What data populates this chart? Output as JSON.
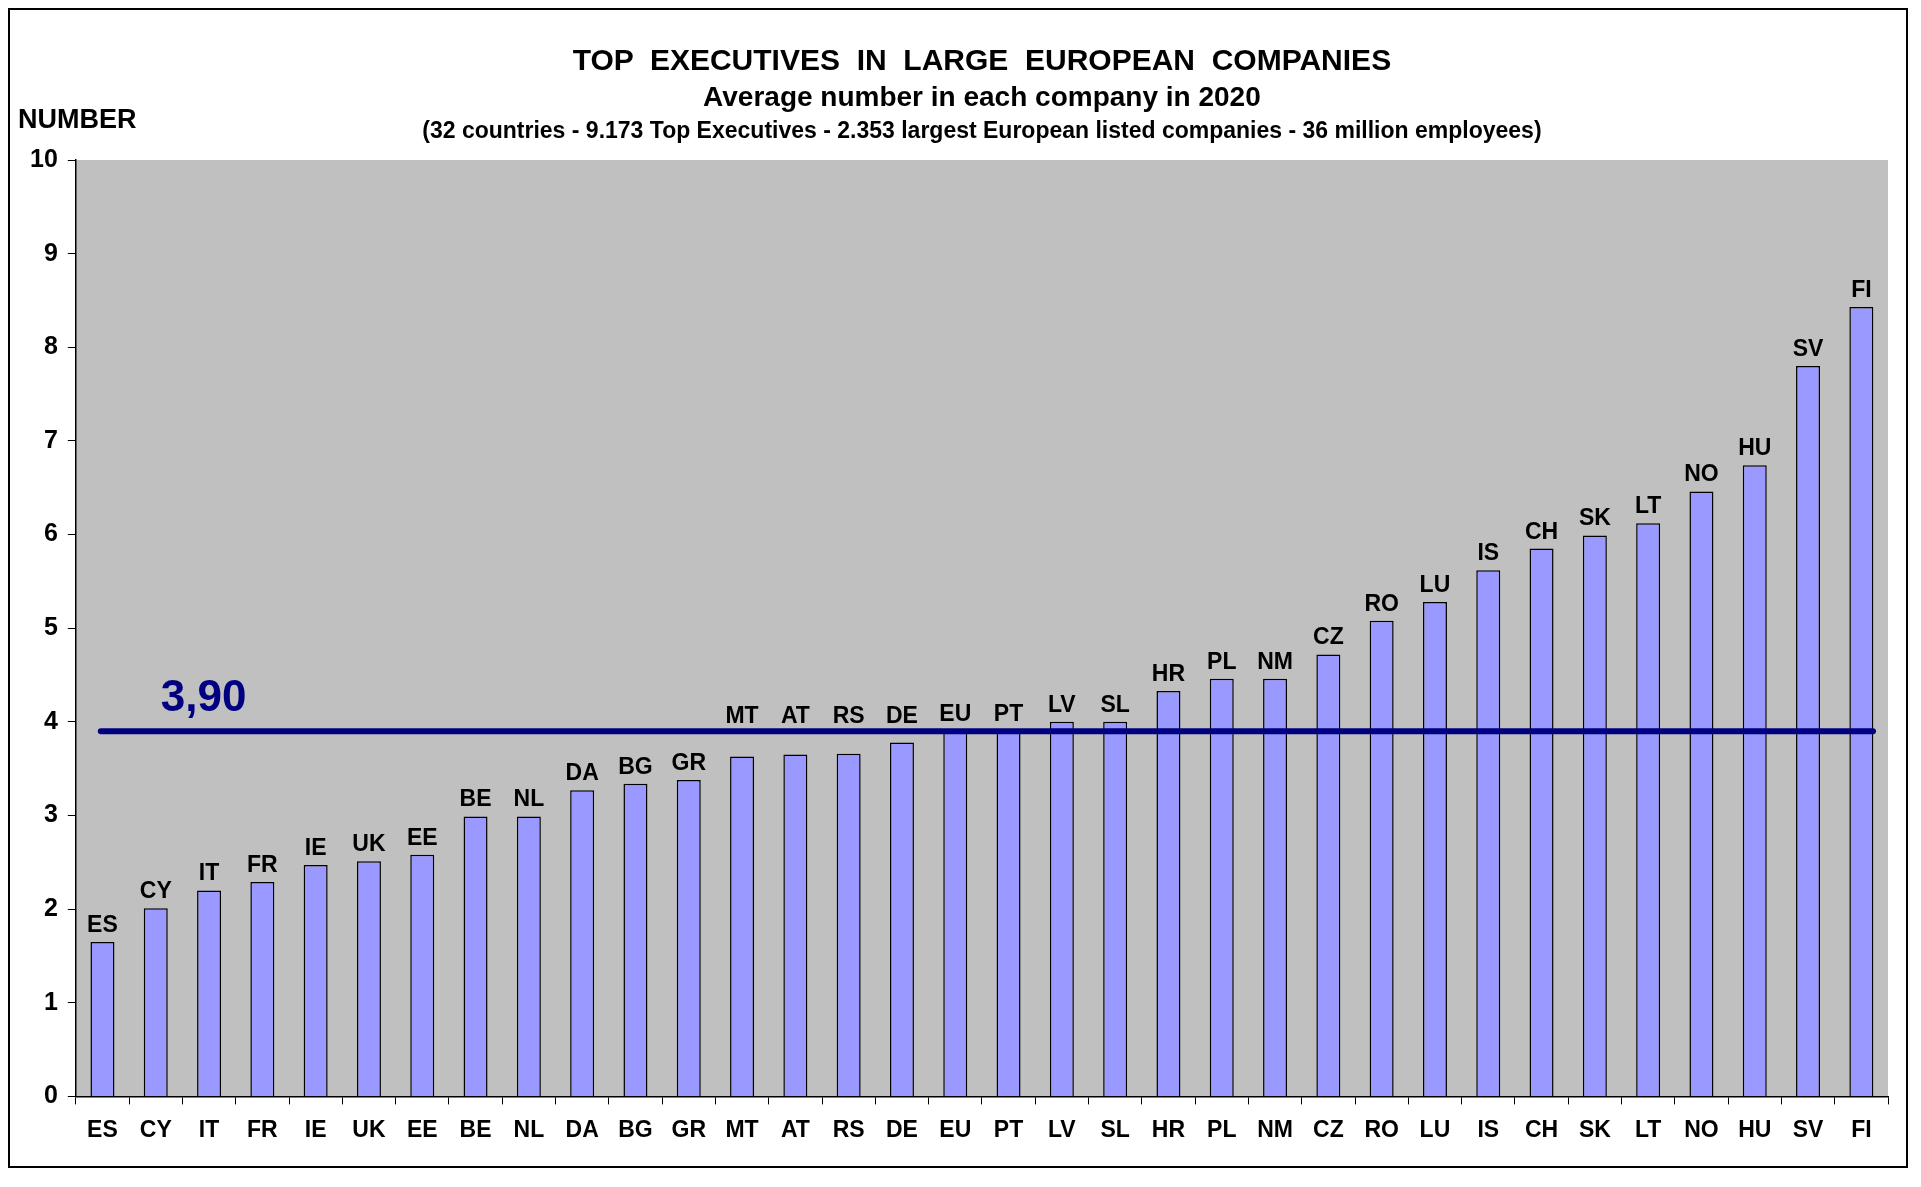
{
  "chart_data": {
    "type": "bar",
    "title": "TOP  EXECUTIVES  IN  LARGE  EUROPEAN  COMPANIES",
    "subtitle": "Average number in each company in 2020",
    "ylabel": "NUMBER",
    "annotations": [
      "(32 countries - 9.173 Top Executives - 2.353 largest European listed companies - 36 million employees)"
    ],
    "categories": [
      "ES",
      "CY",
      "IT",
      "FR",
      "IE",
      "UK",
      "EE",
      "BE",
      "NL",
      "DA",
      "BG",
      "GR",
      "MT",
      "AT",
      "RS",
      "DE",
      "EU",
      "PT",
      "LV",
      "SL",
      "HR",
      "PL",
      "NM",
      "CZ",
      "RO",
      "LU",
      "IS",
      "CH",
      "SK",
      "LT",
      "NO",
      "HU",
      "SV",
      "FI"
    ],
    "values": [
      1.65,
      2.01,
      2.2,
      2.29,
      2.47,
      2.51,
      2.58,
      2.99,
      2.99,
      3.27,
      3.34,
      3.38,
      3.63,
      3.65,
      3.66,
      3.78,
      3.9,
      3.9,
      4.0,
      4.0,
      4.33,
      4.46,
      4.46,
      4.72,
      5.08,
      5.28,
      5.62,
      5.85,
      5.99,
      6.12,
      6.46,
      6.74,
      7.8,
      8.43
    ],
    "color": "#9999ff",
    "ylim": [
      0,
      10
    ],
    "yticks": [
      0,
      1,
      2,
      3,
      4,
      5,
      6,
      7,
      8,
      9,
      10
    ],
    "ref_lines": [
      {
        "axis": "y",
        "value": 3.9,
        "label": "3,90",
        "color": "#000080"
      }
    ],
    "legend": false
  }
}
